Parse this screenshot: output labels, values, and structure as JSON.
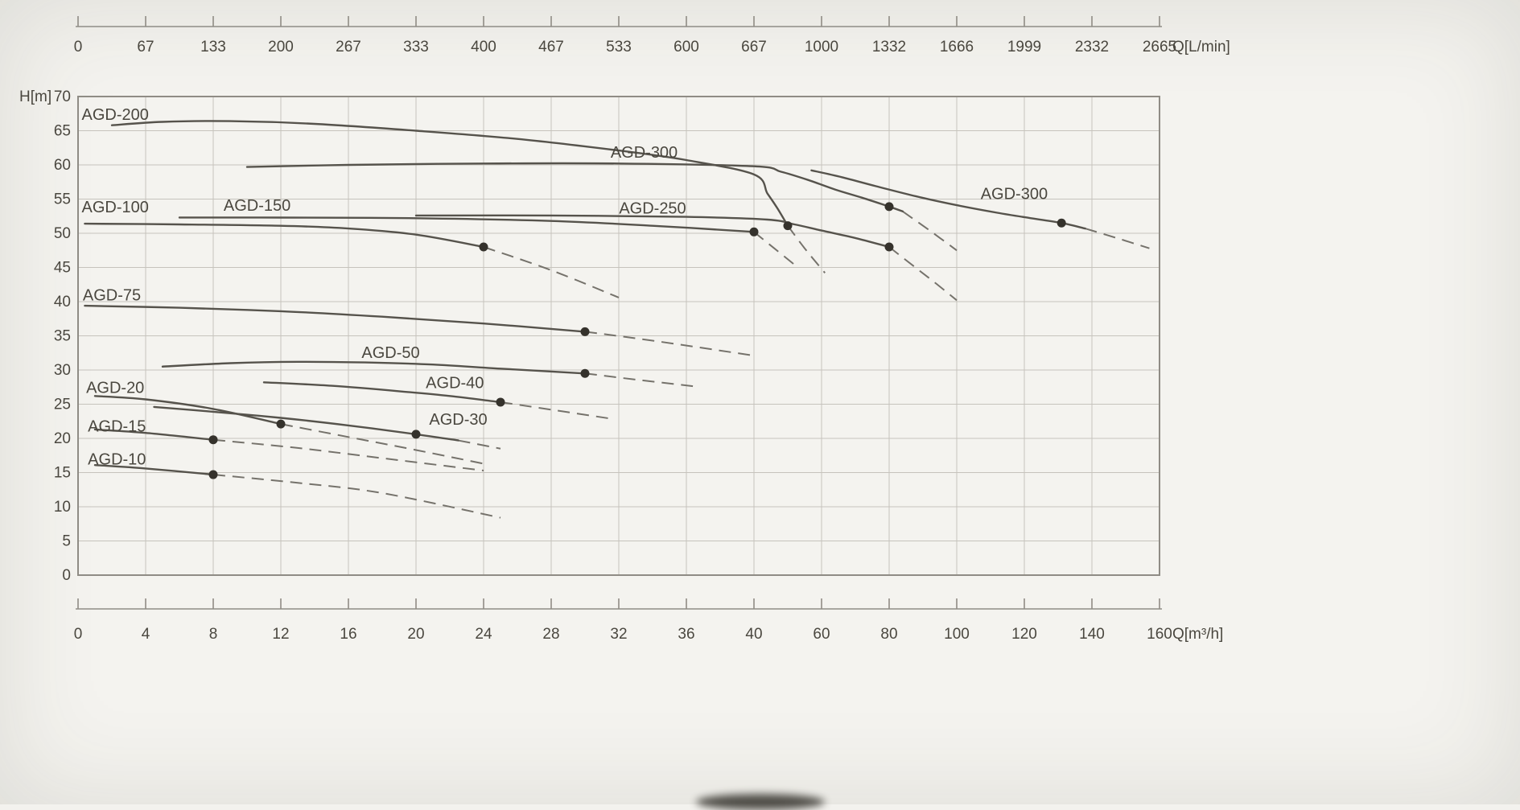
{
  "chart_data": {
    "type": "line",
    "title": "",
    "grid": true,
    "legend": "curve labels drawn on plot",
    "y_axis": {
      "label": "H[m]",
      "min": 0,
      "max": 70,
      "step": 5,
      "tick_labels": [
        "70",
        "65",
        "60",
        "55",
        "50",
        "45",
        "40",
        "35",
        "30",
        "25",
        "20",
        "15",
        "10",
        "5",
        "0"
      ]
    },
    "x_axis_bottom": {
      "label": "Q[m³/h]",
      "tick_values": [
        0,
        4,
        8,
        12,
        16,
        20,
        24,
        28,
        32,
        36,
        40,
        60,
        80,
        100,
        120,
        140,
        160
      ],
      "tick_labels": [
        "0",
        "4",
        "8",
        "12",
        "16",
        "20",
        "24",
        "28",
        "32",
        "36",
        "40",
        "60",
        "80",
        "100",
        "120",
        "140",
        "160"
      ]
    },
    "x_axis_top": {
      "label": "Q[L/min]",
      "tick_labels": [
        "0",
        "67",
        "133",
        "200",
        "267",
        "333",
        "400",
        "467",
        "533",
        "600",
        "667",
        "1000",
        "1332",
        "1666",
        "1999",
        "2332",
        "2665"
      ]
    },
    "series": [
      {
        "name": "AGD-200",
        "label": "AGD-200",
        "label_pos": [
          2.2,
          67.4
        ],
        "solid": [
          [
            2,
            65.8
          ],
          [
            5,
            66.3
          ],
          [
            9,
            66.4
          ],
          [
            14,
            66.0
          ],
          [
            20,
            65.0
          ],
          [
            26,
            63.8
          ],
          [
            32,
            62.1
          ],
          [
            36,
            60.7
          ],
          [
            40,
            58.6
          ],
          [
            44,
            55.8
          ],
          [
            47,
            53.6
          ],
          [
            50,
            51.1
          ]
        ],
        "dashed": [
          [
            50,
            51.1
          ],
          [
            55,
            47.8
          ],
          [
            61,
            44.2
          ]
        ],
        "rated_point": [
          50,
          51.1
        ]
      },
      {
        "name": "AGD-300",
        "label": "AGD-300",
        "label_pos": [
          33.5,
          61.9
        ],
        "solid": [
          [
            10,
            59.7
          ],
          [
            16,
            60.0
          ],
          [
            24,
            60.2
          ],
          [
            32,
            60.2
          ],
          [
            40,
            59.8
          ],
          [
            48,
            59.0
          ],
          [
            56,
            57.8
          ],
          [
            64,
            56.4
          ],
          [
            72,
            55.2
          ],
          [
            80,
            53.9
          ],
          [
            84,
            53.2
          ]
        ],
        "dashed": [
          [
            84,
            53.2
          ],
          [
            92,
            50.4
          ],
          [
            100,
            47.5
          ]
        ],
        "rated_point": [
          80,
          53.9
        ]
      },
      {
        "name": "AGD-300",
        "label": "AGD-300",
        "label_pos": [
          117,
          55.8
        ],
        "solid": [
          [
            57,
            59.2
          ],
          [
            66,
            58.2
          ],
          [
            76,
            56.9
          ],
          [
            88,
            55.4
          ],
          [
            100,
            54.1
          ],
          [
            112,
            53.0
          ],
          [
            122,
            52.2
          ],
          [
            131,
            51.5
          ],
          [
            138,
            50.7
          ]
        ],
        "dashed": [
          [
            138,
            50.7
          ],
          [
            148,
            49.2
          ],
          [
            157,
            47.8
          ]
        ],
        "rated_point": [
          131,
          51.5
        ]
      },
      {
        "name": "AGD-250",
        "label": "AGD-250",
        "label_pos": [
          34,
          53.7
        ],
        "solid": [
          [
            20,
            52.6
          ],
          [
            28,
            52.6
          ],
          [
            36,
            52.4
          ],
          [
            44,
            52.0
          ],
          [
            52,
            51.3
          ],
          [
            60,
            50.4
          ],
          [
            70,
            49.3
          ],
          [
            80,
            48.0
          ]
        ],
        "dashed": [
          [
            80,
            48.0
          ],
          [
            88,
            44.9
          ],
          [
            94,
            42.6
          ],
          [
            100,
            40.2
          ]
        ],
        "rated_point": [
          80,
          48.0
        ]
      },
      {
        "name": "AGD-150",
        "label": "AGD-150",
        "label_pos": [
          10.6,
          54.1
        ],
        "solid": [
          [
            6,
            52.3
          ],
          [
            12,
            52.3
          ],
          [
            20,
            52.2
          ],
          [
            28,
            51.8
          ],
          [
            34,
            51.1
          ],
          [
            40,
            50.2
          ]
        ],
        "dashed": [
          [
            40,
            50.2
          ],
          [
            46,
            47.8
          ],
          [
            52,
            45.4
          ]
        ],
        "rated_point": [
          40,
          50.2
        ]
      },
      {
        "name": "AGD-100",
        "label": "AGD-100",
        "label_pos": [
          2.2,
          53.9
        ],
        "solid": [
          [
            0.4,
            51.4
          ],
          [
            6,
            51.3
          ],
          [
            12,
            51.1
          ],
          [
            16,
            50.7
          ],
          [
            20,
            49.8
          ],
          [
            24,
            48.0
          ]
        ],
        "dashed": [
          [
            24,
            48.0
          ],
          [
            28,
            44.6
          ],
          [
            32,
            40.6
          ]
        ],
        "rated_point": [
          24,
          48.0
        ]
      },
      {
        "name": "AGD-75",
        "label": "AGD-75",
        "label_pos": [
          2,
          41.0
        ],
        "solid": [
          [
            0.4,
            39.4
          ],
          [
            6,
            39.1
          ],
          [
            12,
            38.6
          ],
          [
            18,
            37.8
          ],
          [
            24,
            36.8
          ],
          [
            30,
            35.6
          ]
        ],
        "dashed": [
          [
            30,
            35.6
          ],
          [
            34,
            34.3
          ],
          [
            40,
            32.1
          ]
        ],
        "rated_point": [
          30,
          35.6
        ]
      },
      {
        "name": "AGD-50",
        "label": "AGD-50",
        "label_pos": [
          18.5,
          32.6
        ],
        "solid": [
          [
            5,
            30.5
          ],
          [
            9,
            31.0
          ],
          [
            13,
            31.2
          ],
          [
            17,
            31.1
          ],
          [
            21,
            30.8
          ],
          [
            25,
            30.2
          ],
          [
            30,
            29.5
          ]
        ],
        "dashed": [
          [
            30,
            29.5
          ],
          [
            33,
            28.6
          ],
          [
            36.5,
            27.6
          ]
        ],
        "rated_point": [
          30,
          29.5
        ]
      },
      {
        "name": "AGD-40",
        "label": "AGD-40",
        "label_pos": [
          22.3,
          28.2
        ],
        "solid": [
          [
            11,
            28.2
          ],
          [
            15,
            27.7
          ],
          [
            19,
            26.9
          ],
          [
            22,
            26.2
          ],
          [
            25,
            25.3
          ]
        ],
        "dashed": [
          [
            25,
            25.3
          ],
          [
            28,
            24.2
          ],
          [
            31.5,
            22.9
          ]
        ],
        "rated_point": [
          25,
          25.3
        ]
      },
      {
        "name": "AGD-30",
        "label": "AGD-30",
        "label_pos": [
          22.5,
          22.8
        ],
        "solid": [
          [
            4.5,
            24.6
          ],
          [
            8,
            23.9
          ],
          [
            12,
            23.0
          ],
          [
            16,
            21.9
          ],
          [
            20,
            20.6
          ],
          [
            22.5,
            19.7
          ]
        ],
        "dashed": [
          [
            22.5,
            19.7
          ],
          [
            25,
            18.5
          ]
        ],
        "rated_point": [
          20,
          20.6
        ]
      },
      {
        "name": "AGD-20",
        "label": "AGD-20",
        "label_pos": [
          2.2,
          27.5
        ],
        "solid": [
          [
            1,
            26.2
          ],
          [
            4,
            25.7
          ],
          [
            8,
            24.3
          ],
          [
            12,
            22.1
          ]
        ],
        "dashed": [
          [
            12,
            22.1
          ],
          [
            16,
            20.2
          ],
          [
            20,
            18.3
          ],
          [
            24,
            16.3
          ]
        ],
        "rated_point": [
          12,
          22.1
        ]
      },
      {
        "name": "AGD-15",
        "label": "AGD-15",
        "label_pos": [
          2.3,
          21.8
        ],
        "solid": [
          [
            1,
            21.3
          ],
          [
            4,
            20.8
          ],
          [
            8,
            19.8
          ]
        ],
        "dashed": [
          [
            8,
            19.8
          ],
          [
            13,
            18.6
          ],
          [
            18,
            17.1
          ],
          [
            24,
            15.3
          ]
        ],
        "rated_point": [
          8,
          19.8
        ]
      },
      {
        "name": "AGD-10",
        "label": "AGD-10",
        "label_pos": [
          2.3,
          17.0
        ],
        "solid": [
          [
            1,
            16.1
          ],
          [
            4,
            15.6
          ],
          [
            8,
            14.7
          ]
        ],
        "dashed": [
          [
            8,
            14.7
          ],
          [
            13,
            13.5
          ],
          [
            18,
            12.0
          ],
          [
            25,
            8.4
          ]
        ],
        "rated_point": [
          8,
          14.7
        ]
      }
    ]
  },
  "style": {
    "background": "#f4f3ef",
    "grid_color": "#c6c3bc",
    "frame_color": "#8f8c85",
    "curve_color": "#56534c",
    "dashed_color": "#75726b",
    "dot_color": "#35322c",
    "text_color": "#4a473f"
  }
}
